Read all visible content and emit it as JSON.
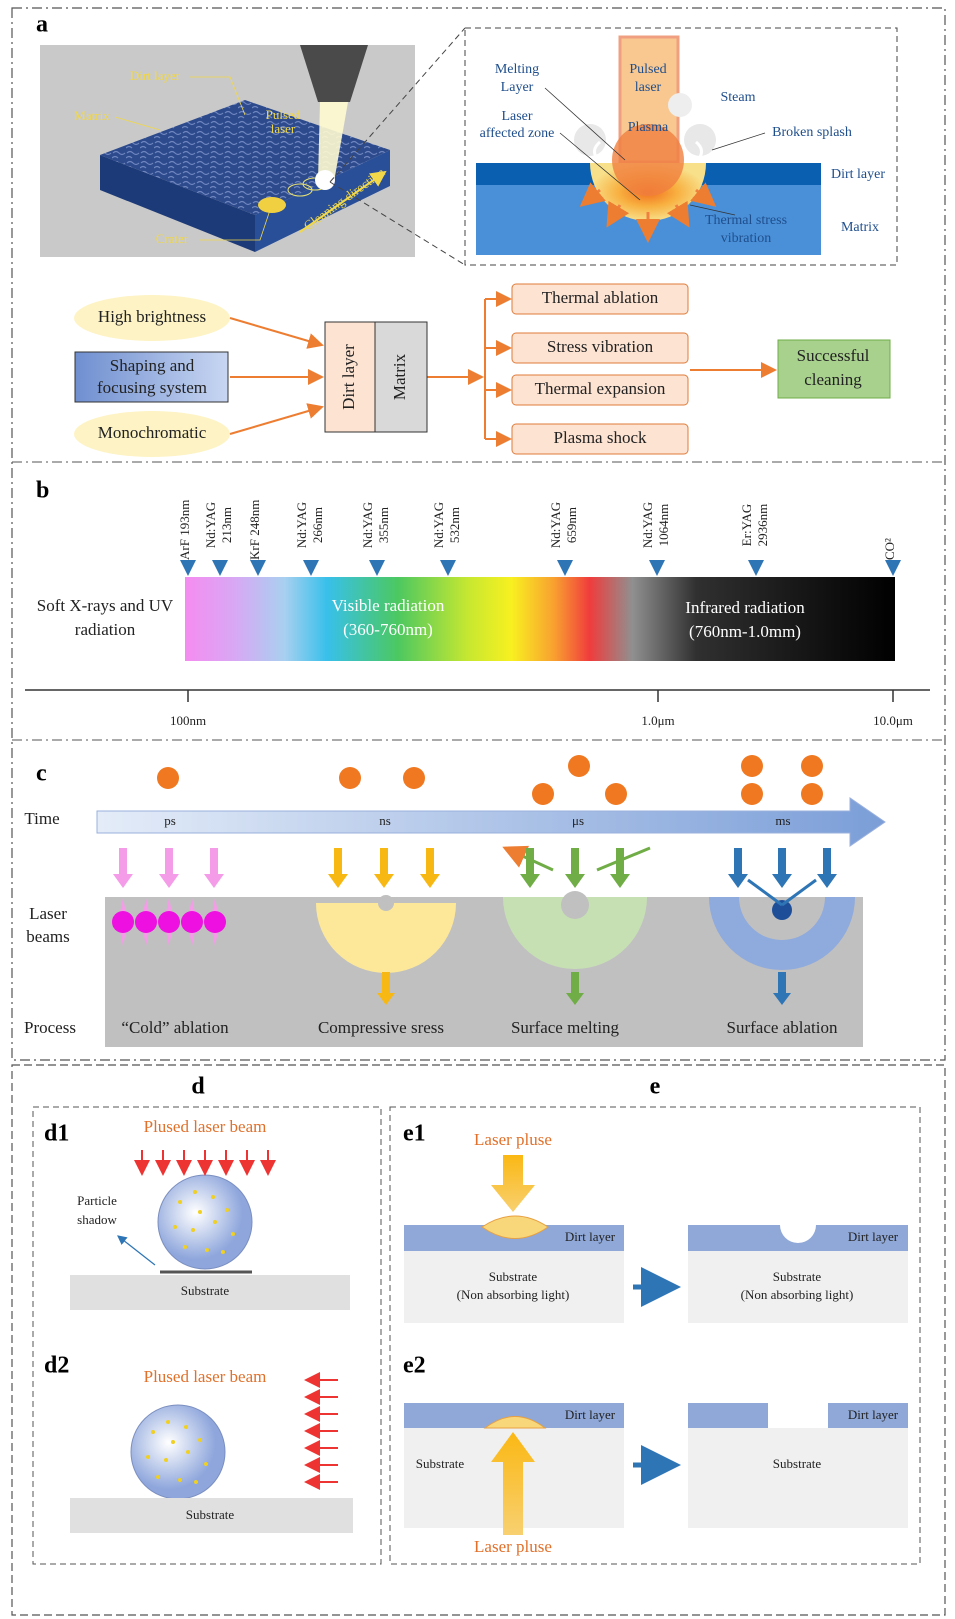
{
  "panel_a": {
    "label": "a",
    "photo": {
      "dirt_layer": "Dirt layer",
      "matrix": "Matrix",
      "pulsed_laser": [
        "Pulsed",
        "laser"
      ],
      "crater": "Crater",
      "cleaning_direction": "Cleaning direction"
    },
    "inset": {
      "melting_layer": [
        "Melting",
        "Layer"
      ],
      "laser_affected_zone": [
        "Laser",
        "affected zone"
      ],
      "pulsed_laser": [
        "Pulsed",
        "laser"
      ],
      "plasma": "Plasma",
      "steam": "Steam",
      "broken_splash": "Broken splash",
      "dirt_layer": "Dirt layer",
      "matrix": "Matrix",
      "thermal_stress": [
        "Thermal stress",
        "vibration"
      ]
    },
    "flow": {
      "inputs": [
        [
          "High brightness"
        ],
        [
          "Shaping and",
          "focusing system"
        ],
        [
          "Monochromatic"
        ]
      ],
      "target": [
        "Dirt layer",
        "Matrix"
      ],
      "mechanisms": [
        "Thermal ablation",
        "Stress vibration",
        "Thermal expansion",
        "Plasma shock"
      ],
      "result": [
        "Successful",
        "cleaning"
      ]
    }
  },
  "panel_b": {
    "label": "b",
    "lasers": [
      [
        "ArF 193nm"
      ],
      [
        "Nd:YAG",
        "213nm"
      ],
      [
        "KrF 248nm"
      ],
      [
        "Nd:YAG",
        "266nm"
      ],
      [
        "Nd:YAG",
        "355nm"
      ],
      [
        "Nd:YAG",
        "532nm"
      ],
      [
        "Nd:YAG",
        "659nm"
      ],
      [
        "Nd:YAG",
        "1064nm"
      ],
      [
        "Er:YAG",
        "2936nm"
      ],
      [
        "CO²"
      ]
    ],
    "regions": [
      [
        "Soft X-rays and UV",
        "radiation"
      ],
      [
        "Visible radiation",
        "(360-760nm)"
      ],
      [
        "Infrared radiation",
        "(760nm-1.0mm)"
      ]
    ],
    "axis_labels": [
      "100nm",
      "1.0μm",
      "10.0μm"
    ]
  },
  "panel_c": {
    "label": "c",
    "time": "Time",
    "time_scales": [
      "ps",
      "ns",
      "μs",
      "ms"
    ],
    "laser_beams": [
      "Laser",
      "beams"
    ],
    "process": "Process",
    "processes": [
      "“Cold”  ablation",
      "Compressive sress",
      "Surface melting",
      "Surface ablation"
    ]
  },
  "panel_d": {
    "label": "d",
    "d1": {
      "label": "d1",
      "beam": "Plused laser beam",
      "particle_shadow": [
        "Particle",
        "shadow"
      ],
      "substrate": "Substrate"
    },
    "d2": {
      "label": "d2",
      "beam": "Plused laser beam",
      "substrate": "Substrate"
    }
  },
  "panel_e": {
    "label": "e",
    "e1": {
      "label": "e1",
      "laser": "Laser pluse",
      "before": {
        "dirt_layer": "Dirt layer",
        "substrate": [
          "Substrate",
          "(Non absorbing light)"
        ]
      },
      "after": {
        "dirt_layer": "Dirt layer",
        "substrate": [
          "Substrate",
          "(Non absorbing light)"
        ]
      }
    },
    "e2": {
      "label": "e2",
      "laser": "Laser pluse",
      "before": {
        "dirt_layer": "Dirt layer",
        "substrate": "Substrate"
      },
      "after": {
        "dirt_layer": "Dirt layer",
        "substrate": "Substrate"
      }
    }
  }
}
